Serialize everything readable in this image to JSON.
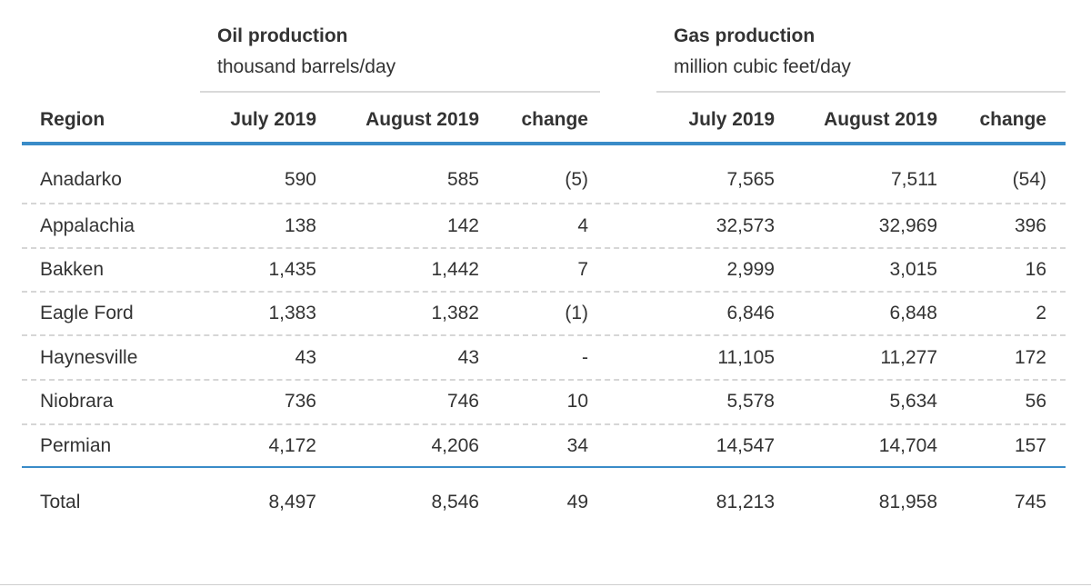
{
  "oil": {
    "title": "Oil production",
    "unit": "thousand barrels/day"
  },
  "gas": {
    "title": "Gas production",
    "unit": "million cubic feet/day"
  },
  "columns": {
    "region": "Region",
    "oil_july": "July 2019",
    "oil_august": "August 2019",
    "oil_change": "change",
    "gas_july": "July 2019",
    "gas_august": "August 2019",
    "gas_change": "change"
  },
  "rows": [
    {
      "region": "Anadarko",
      "oil_july": "590",
      "oil_august": "585",
      "oil_change": "(5)",
      "gas_july": "7,565",
      "gas_august": "7,511",
      "gas_change": "(54)"
    },
    {
      "region": "Appalachia",
      "oil_july": "138",
      "oil_august": "142",
      "oil_change": "4",
      "gas_july": "32,573",
      "gas_august": "32,969",
      "gas_change": "396"
    },
    {
      "region": "Bakken",
      "oil_july": "1,435",
      "oil_august": "1,442",
      "oil_change": "7",
      "gas_july": "2,999",
      "gas_august": "3,015",
      "gas_change": "16"
    },
    {
      "region": "Eagle Ford",
      "oil_july": "1,383",
      "oil_august": "1,382",
      "oil_change": "(1)",
      "gas_july": "6,846",
      "gas_august": "6,848",
      "gas_change": "2"
    },
    {
      "region": "Haynesville",
      "oil_july": "43",
      "oil_august": "43",
      "oil_change": "-",
      "gas_july": "11,105",
      "gas_august": "11,277",
      "gas_change": "172"
    },
    {
      "region": "Niobrara",
      "oil_july": "736",
      "oil_august": "746",
      "oil_change": "10",
      "gas_july": "5,578",
      "gas_august": "5,634",
      "gas_change": "56"
    },
    {
      "region": "Permian",
      "oil_july": "4,172",
      "oil_august": "4,206",
      "oil_change": "34",
      "gas_july": "14,547",
      "gas_august": "14,704",
      "gas_change": "157"
    }
  ],
  "total": {
    "region": "Total",
    "oil_july": "8,497",
    "oil_august": "8,546",
    "oil_change": "49",
    "gas_july": "81,213",
    "gas_august": "81,958",
    "gas_change": "745"
  },
  "colors": {
    "accent_rule": "#3a8cc8",
    "text": "#333333",
    "dashed_separator": "#d6d6d6"
  }
}
